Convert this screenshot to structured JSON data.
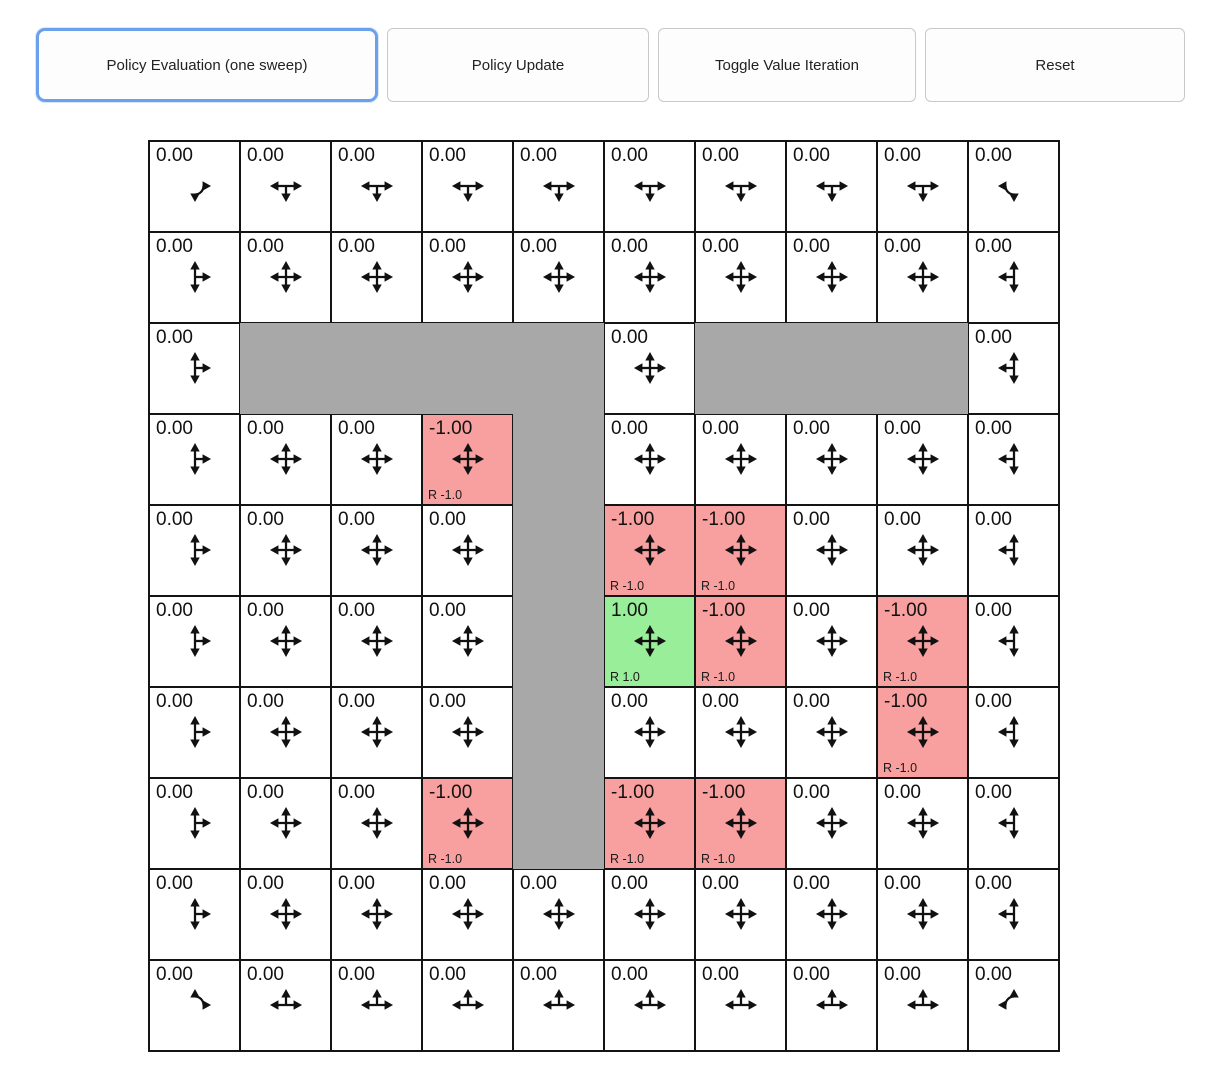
{
  "toolbar": {
    "buttons": [
      {
        "label": "Policy Evaluation (one sweep)",
        "focused": true
      },
      {
        "label": "Policy Update",
        "focused": false
      },
      {
        "label": "Toggle Value Iteration",
        "focused": false
      },
      {
        "label": "Reset",
        "focused": false
      }
    ]
  },
  "colors": {
    "wall": "#a8a8a8",
    "negative": "#f89f9f",
    "positive": "#99ee99",
    "focus": "#6ba0ec",
    "grid_line": "#141414"
  },
  "grid": {
    "rows_count": 10,
    "cols_count": 10,
    "rows": [
      [
        {
          "v": "0.00",
          "t": "n",
          "d": "dr",
          "r": ""
        },
        {
          "v": "0.00",
          "t": "n",
          "d": "dlr",
          "r": ""
        },
        {
          "v": "0.00",
          "t": "n",
          "d": "dlr",
          "r": ""
        },
        {
          "v": "0.00",
          "t": "n",
          "d": "dlr",
          "r": ""
        },
        {
          "v": "0.00",
          "t": "n",
          "d": "dlr",
          "r": ""
        },
        {
          "v": "0.00",
          "t": "n",
          "d": "dlr",
          "r": ""
        },
        {
          "v": "0.00",
          "t": "n",
          "d": "dlr",
          "r": ""
        },
        {
          "v": "0.00",
          "t": "n",
          "d": "dlr",
          "r": ""
        },
        {
          "v": "0.00",
          "t": "n",
          "d": "dlr",
          "r": ""
        },
        {
          "v": "0.00",
          "t": "n",
          "d": "dl",
          "r": ""
        }
      ],
      [
        {
          "v": "0.00",
          "t": "n",
          "d": "udr",
          "r": ""
        },
        {
          "v": "0.00",
          "t": "n",
          "d": "udlr",
          "r": ""
        },
        {
          "v": "0.00",
          "t": "n",
          "d": "udlr",
          "r": ""
        },
        {
          "v": "0.00",
          "t": "n",
          "d": "udlr",
          "r": ""
        },
        {
          "v": "0.00",
          "t": "n",
          "d": "udlr",
          "r": ""
        },
        {
          "v": "0.00",
          "t": "n",
          "d": "udlr",
          "r": ""
        },
        {
          "v": "0.00",
          "t": "n",
          "d": "udlr",
          "r": ""
        },
        {
          "v": "0.00",
          "t": "n",
          "d": "udlr",
          "r": ""
        },
        {
          "v": "0.00",
          "t": "n",
          "d": "udlr",
          "r": ""
        },
        {
          "v": "0.00",
          "t": "n",
          "d": "udl",
          "r": ""
        }
      ],
      [
        {
          "v": "0.00",
          "t": "n",
          "d": "udr",
          "r": ""
        },
        {
          "v": "",
          "t": "w",
          "d": "",
          "r": ""
        },
        {
          "v": "",
          "t": "w",
          "d": "",
          "r": ""
        },
        {
          "v": "",
          "t": "w",
          "d": "",
          "r": ""
        },
        {
          "v": "",
          "t": "w",
          "d": "",
          "r": ""
        },
        {
          "v": "0.00",
          "t": "n",
          "d": "udlr",
          "r": ""
        },
        {
          "v": "",
          "t": "w",
          "d": "",
          "r": ""
        },
        {
          "v": "",
          "t": "w",
          "d": "",
          "r": ""
        },
        {
          "v": "",
          "t": "w",
          "d": "",
          "r": ""
        },
        {
          "v": "0.00",
          "t": "n",
          "d": "udl",
          "r": ""
        }
      ],
      [
        {
          "v": "0.00",
          "t": "n",
          "d": "udr",
          "r": ""
        },
        {
          "v": "0.00",
          "t": "n",
          "d": "udlr",
          "r": ""
        },
        {
          "v": "0.00",
          "t": "n",
          "d": "udlr",
          "r": ""
        },
        {
          "v": "-1.00",
          "t": "neg",
          "d": "udlr",
          "r": "R -1.0"
        },
        {
          "v": "",
          "t": "w",
          "d": "",
          "r": ""
        },
        {
          "v": "0.00",
          "t": "n",
          "d": "udlr",
          "r": ""
        },
        {
          "v": "0.00",
          "t": "n",
          "d": "udlr",
          "r": ""
        },
        {
          "v": "0.00",
          "t": "n",
          "d": "udlr",
          "r": ""
        },
        {
          "v": "0.00",
          "t": "n",
          "d": "udlr",
          "r": ""
        },
        {
          "v": "0.00",
          "t": "n",
          "d": "udl",
          "r": ""
        }
      ],
      [
        {
          "v": "0.00",
          "t": "n",
          "d": "udr",
          "r": ""
        },
        {
          "v": "0.00",
          "t": "n",
          "d": "udlr",
          "r": ""
        },
        {
          "v": "0.00",
          "t": "n",
          "d": "udlr",
          "r": ""
        },
        {
          "v": "0.00",
          "t": "n",
          "d": "udlr",
          "r": ""
        },
        {
          "v": "",
          "t": "w",
          "d": "",
          "r": ""
        },
        {
          "v": "-1.00",
          "t": "neg",
          "d": "udlr",
          "r": "R -1.0"
        },
        {
          "v": "-1.00",
          "t": "neg",
          "d": "udlr",
          "r": "R -1.0"
        },
        {
          "v": "0.00",
          "t": "n",
          "d": "udlr",
          "r": ""
        },
        {
          "v": "0.00",
          "t": "n",
          "d": "udlr",
          "r": ""
        },
        {
          "v": "0.00",
          "t": "n",
          "d": "udl",
          "r": ""
        }
      ],
      [
        {
          "v": "0.00",
          "t": "n",
          "d": "udr",
          "r": ""
        },
        {
          "v": "0.00",
          "t": "n",
          "d": "udlr",
          "r": ""
        },
        {
          "v": "0.00",
          "t": "n",
          "d": "udlr",
          "r": ""
        },
        {
          "v": "0.00",
          "t": "n",
          "d": "udlr",
          "r": ""
        },
        {
          "v": "",
          "t": "w",
          "d": "",
          "r": ""
        },
        {
          "v": "1.00",
          "t": "pos",
          "d": "udlr",
          "r": "R 1.0"
        },
        {
          "v": "-1.00",
          "t": "neg",
          "d": "udlr",
          "r": "R -1.0"
        },
        {
          "v": "0.00",
          "t": "n",
          "d": "udlr",
          "r": ""
        },
        {
          "v": "-1.00",
          "t": "neg",
          "d": "udlr",
          "r": "R -1.0"
        },
        {
          "v": "0.00",
          "t": "n",
          "d": "udl",
          "r": ""
        }
      ],
      [
        {
          "v": "0.00",
          "t": "n",
          "d": "udr",
          "r": ""
        },
        {
          "v": "0.00",
          "t": "n",
          "d": "udlr",
          "r": ""
        },
        {
          "v": "0.00",
          "t": "n",
          "d": "udlr",
          "r": ""
        },
        {
          "v": "0.00",
          "t": "n",
          "d": "udlr",
          "r": ""
        },
        {
          "v": "",
          "t": "w",
          "d": "",
          "r": ""
        },
        {
          "v": "0.00",
          "t": "n",
          "d": "udlr",
          "r": ""
        },
        {
          "v": "0.00",
          "t": "n",
          "d": "udlr",
          "r": ""
        },
        {
          "v": "0.00",
          "t": "n",
          "d": "udlr",
          "r": ""
        },
        {
          "v": "-1.00",
          "t": "neg",
          "d": "udlr",
          "r": "R -1.0"
        },
        {
          "v": "0.00",
          "t": "n",
          "d": "udl",
          "r": ""
        }
      ],
      [
        {
          "v": "0.00",
          "t": "n",
          "d": "udr",
          "r": ""
        },
        {
          "v": "0.00",
          "t": "n",
          "d": "udlr",
          "r": ""
        },
        {
          "v": "0.00",
          "t": "n",
          "d": "udlr",
          "r": ""
        },
        {
          "v": "-1.00",
          "t": "neg",
          "d": "udlr",
          "r": "R -1.0"
        },
        {
          "v": "",
          "t": "w",
          "d": "",
          "r": ""
        },
        {
          "v": "-1.00",
          "t": "neg",
          "d": "udlr",
          "r": "R -1.0"
        },
        {
          "v": "-1.00",
          "t": "neg",
          "d": "udlr",
          "r": "R -1.0"
        },
        {
          "v": "0.00",
          "t": "n",
          "d": "udlr",
          "r": ""
        },
        {
          "v": "0.00",
          "t": "n",
          "d": "udlr",
          "r": ""
        },
        {
          "v": "0.00",
          "t": "n",
          "d": "udl",
          "r": ""
        }
      ],
      [
        {
          "v": "0.00",
          "t": "n",
          "d": "udr",
          "r": ""
        },
        {
          "v": "0.00",
          "t": "n",
          "d": "udlr",
          "r": ""
        },
        {
          "v": "0.00",
          "t": "n",
          "d": "udlr",
          "r": ""
        },
        {
          "v": "0.00",
          "t": "n",
          "d": "udlr",
          "r": ""
        },
        {
          "v": "0.00",
          "t": "n",
          "d": "udlr",
          "r": ""
        },
        {
          "v": "0.00",
          "t": "n",
          "d": "udlr",
          "r": ""
        },
        {
          "v": "0.00",
          "t": "n",
          "d": "udlr",
          "r": ""
        },
        {
          "v": "0.00",
          "t": "n",
          "d": "udlr",
          "r": ""
        },
        {
          "v": "0.00",
          "t": "n",
          "d": "udlr",
          "r": ""
        },
        {
          "v": "0.00",
          "t": "n",
          "d": "udl",
          "r": ""
        }
      ],
      [
        {
          "v": "0.00",
          "t": "n",
          "d": "ur",
          "r": ""
        },
        {
          "v": "0.00",
          "t": "n",
          "d": "ulr",
          "r": ""
        },
        {
          "v": "0.00",
          "t": "n",
          "d": "ulr",
          "r": ""
        },
        {
          "v": "0.00",
          "t": "n",
          "d": "ulr",
          "r": ""
        },
        {
          "v": "0.00",
          "t": "n",
          "d": "ulr",
          "r": ""
        },
        {
          "v": "0.00",
          "t": "n",
          "d": "ulr",
          "r": ""
        },
        {
          "v": "0.00",
          "t": "n",
          "d": "ulr",
          "r": ""
        },
        {
          "v": "0.00",
          "t": "n",
          "d": "ulr",
          "r": ""
        },
        {
          "v": "0.00",
          "t": "n",
          "d": "ulr",
          "r": ""
        },
        {
          "v": "0.00",
          "t": "n",
          "d": "ul",
          "r": ""
        }
      ]
    ]
  }
}
